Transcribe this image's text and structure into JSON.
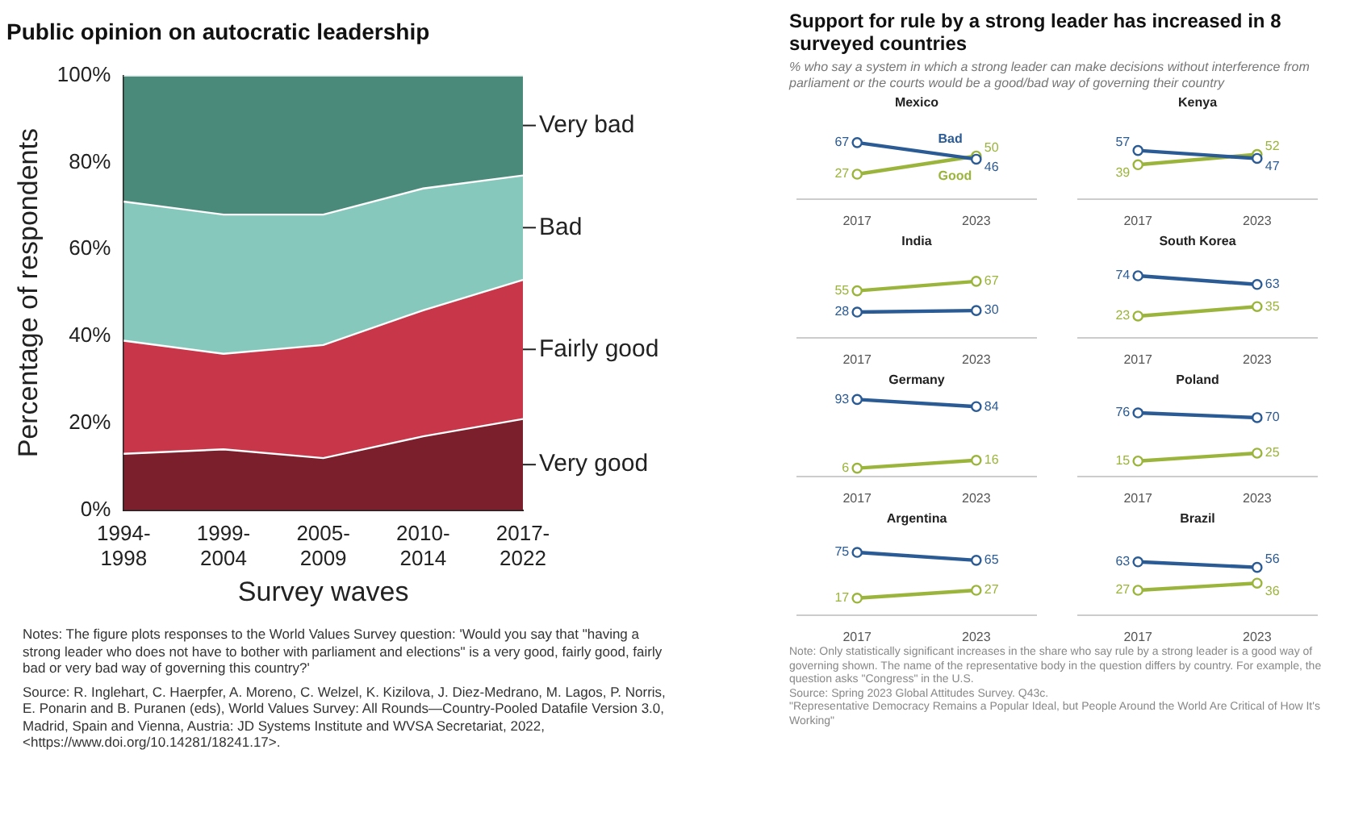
{
  "chart_data": [
    {
      "type": "area",
      "title": "Public opinion on autocratic leadership",
      "xlabel": "Survey waves",
      "ylabel": "Percentage of respondents",
      "stacked": true,
      "categories": [
        "1994-1998",
        "1999-2004",
        "2005-2009",
        "2010-2014",
        "2017-2022"
      ],
      "series": [
        {
          "name": "Very good",
          "color": "#7a1f2b",
          "values": [
            13,
            14,
            12,
            17,
            21
          ]
        },
        {
          "name": "Fairly good",
          "color": "#c8364a",
          "values": [
            26,
            22,
            26,
            29,
            32
          ]
        },
        {
          "name": "Bad",
          "color": "#86c8bb",
          "values": [
            32,
            32,
            30,
            28,
            24
          ]
        },
        {
          "name": "Very bad",
          "color": "#4a8a7a",
          "values": [
            29,
            32,
            32,
            26,
            23
          ]
        }
      ],
      "ylim": [
        0,
        100
      ],
      "yticks": [
        {
          "value": 0,
          "label": "0%"
        },
        {
          "value": 20,
          "label": "20%"
        },
        {
          "value": 40,
          "label": "40%"
        },
        {
          "value": 60,
          "label": "60%"
        },
        {
          "value": 80,
          "label": "80%"
        },
        {
          "value": 100,
          "label": "100%"
        }
      ],
      "grid": false,
      "annotations": [
        "Notes: The figure plots responses to the World Values Survey question: 'Would you say that \"having a strong leader who does not have to bother with parliament and elections\" is a very good, fairly good, fairly bad or very bad way of governing this country?'",
        "Source: R. Inglehart, C. Haerpfer, A. Moreno, C. Welzel, K. Kizilova, J. Diez-Medrano, M. Lagos, P. Norris, E. Ponarin and B. Puranen (eds), World Values Survey: All Rounds—Country-Pooled Datafile Version 3.0, Madrid, Spain and Vienna, Austria: JD Systems Institute and WVSA Secretariat, 2022, <https://www.doi.org/10.14281/18241.17>."
      ]
    },
    {
      "type": "other",
      "title": "Support for rule by a strong leader has increased in 8 surveyed countries",
      "subtitle": "% who say a system in which a strong leader can make decisions without interference from parliament or the courts would be a good/bad way of governing their country"
    },
    {
      "type": "line",
      "title": "Mexico",
      "categories": [
        "2017",
        "2023"
      ],
      "marker": "circle",
      "data_labels": true,
      "series": [
        {
          "name": "Bad",
          "color": "#2b5b94",
          "values": [
            67,
            46
          ]
        },
        {
          "name": "Good",
          "color": "#9bb53c",
          "values": [
            27,
            50
          ]
        }
      ]
    },
    {
      "type": "line",
      "title": "Kenya",
      "categories": [
        "2017",
        "2023"
      ],
      "marker": "circle",
      "data_labels": true,
      "series": [
        {
          "color": "#2b5b94",
          "values": [
            57,
            47
          ]
        },
        {
          "color": "#9bb53c",
          "values": [
            39,
            52
          ]
        }
      ]
    },
    {
      "type": "line",
      "title": "India",
      "categories": [
        "2017",
        "2023"
      ],
      "marker": "circle",
      "data_labels": true,
      "series": [
        {
          "color": "#2b5b94",
          "values": [
            28,
            30
          ]
        },
        {
          "color": "#9bb53c",
          "values": [
            55,
            67
          ]
        }
      ]
    },
    {
      "type": "line",
      "title": "South Korea",
      "categories": [
        "2017",
        "2023"
      ],
      "marker": "circle",
      "data_labels": true,
      "series": [
        {
          "color": "#2b5b94",
          "values": [
            74,
            63
          ]
        },
        {
          "color": "#9bb53c",
          "values": [
            23,
            35
          ]
        }
      ]
    },
    {
      "type": "line",
      "title": "Germany",
      "categories": [
        "2017",
        "2023"
      ],
      "marker": "circle",
      "data_labels": true,
      "series": [
        {
          "color": "#2b5b94",
          "values": [
            93,
            84
          ]
        },
        {
          "color": "#9bb53c",
          "values": [
            6,
            16
          ]
        }
      ]
    },
    {
      "type": "line",
      "title": "Poland",
      "categories": [
        "2017",
        "2023"
      ],
      "marker": "circle",
      "data_labels": true,
      "series": [
        {
          "color": "#2b5b94",
          "values": [
            76,
            70
          ]
        },
        {
          "color": "#9bb53c",
          "values": [
            15,
            25
          ]
        }
      ]
    },
    {
      "type": "line",
      "title": "Argentina",
      "categories": [
        "2017",
        "2023"
      ],
      "marker": "circle",
      "data_labels": true,
      "series": [
        {
          "color": "#2b5b94",
          "values": [
            75,
            65
          ]
        },
        {
          "color": "#9bb53c",
          "values": [
            17,
            27
          ]
        }
      ]
    },
    {
      "type": "line",
      "title": "Brazil",
      "categories": [
        "2017",
        "2023"
      ],
      "marker": "circle",
      "data_labels": true,
      "series": [
        {
          "color": "#2b5b94",
          "values": [
            63,
            56
          ]
        },
        {
          "color": "#9bb53c",
          "values": [
            27,
            36
          ]
        }
      ]
    },
    {
      "type": "other",
      "annotations": [
        "Note: Only statistically significant increases in the share who say rule by a strong leader is a good way of governing shown. The name of the representative body in the question differs by country. For example, the question asks \"Congress\" in the U.S.",
        "Source: Spring 2023 Global Attitudes Survey. Q43c.",
        "\"Representative Democracy Remains a Popular Ideal, but People Around the World Are Critical of How It's Working\""
      ]
    }
  ]
}
